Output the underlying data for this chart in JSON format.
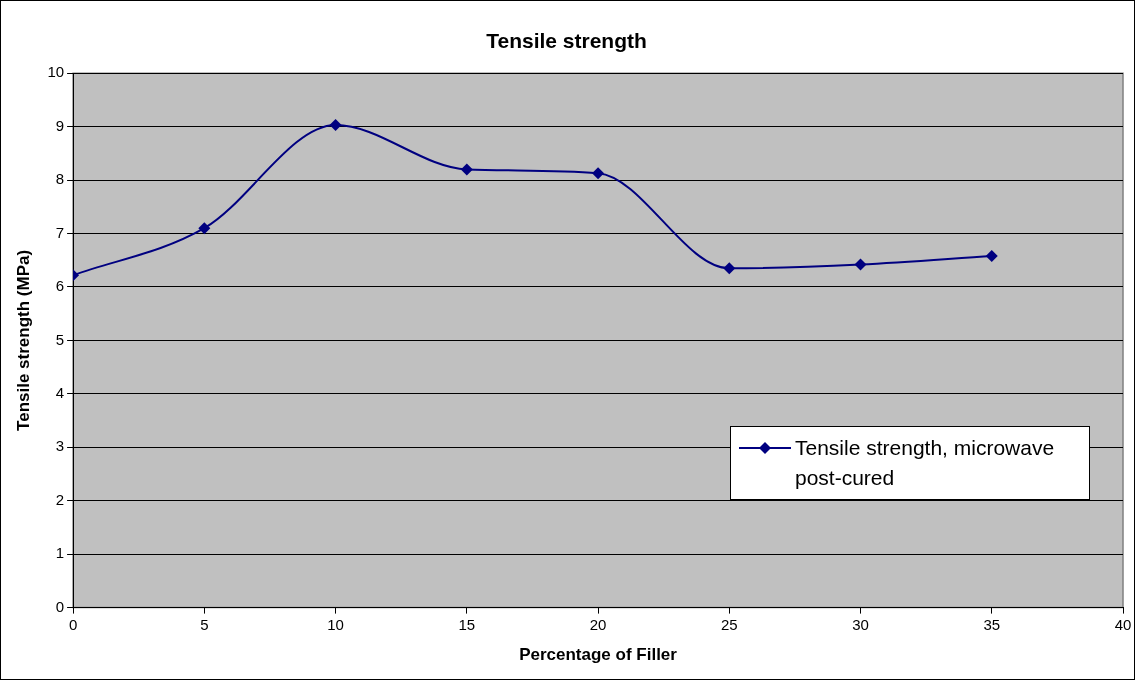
{
  "chart_data": {
    "type": "line",
    "title": "Tensile strength",
    "xlabel": "Percentage of Filler",
    "ylabel": "Tensile strength (MPa)",
    "x": [
      0,
      5,
      10,
      15,
      20,
      25,
      30,
      35
    ],
    "series": [
      {
        "name": "Tensile strength, microwave post-cured",
        "color": "#000080",
        "values": [
          6.22,
          7.1,
          9.03,
          8.2,
          8.13,
          6.35,
          6.42,
          6.58
        ]
      }
    ],
    "xlim": [
      0,
      40
    ],
    "xticks": [
      0,
      5,
      10,
      15,
      20,
      25,
      30,
      35,
      40
    ],
    "ylim": [
      0,
      10
    ],
    "yticks": [
      0,
      1,
      2,
      3,
      4,
      5,
      6,
      7,
      8,
      9,
      10
    ],
    "grid": "y",
    "legend": "right",
    "marker": "diamond",
    "line_style": "solid"
  }
}
